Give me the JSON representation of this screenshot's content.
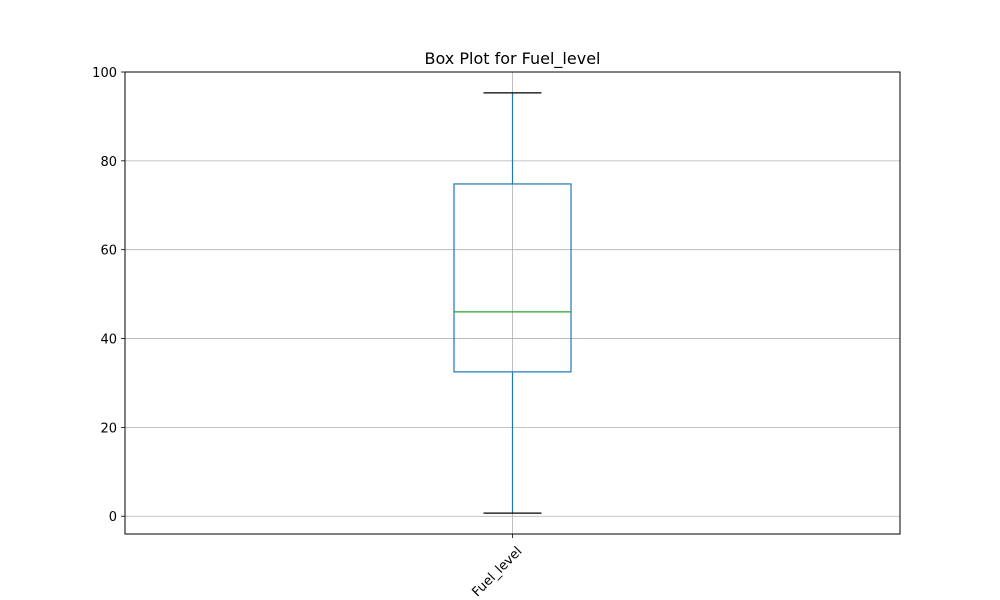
{
  "chart_data": {
    "type": "box",
    "title": "Box Plot for Fuel_level",
    "xlabel": "",
    "ylabel": "",
    "categories": [
      "Fuel_level"
    ],
    "boxes": [
      {
        "name": "Fuel_level",
        "whisker_low": 0.7,
        "q1": 32.5,
        "median": 46.0,
        "q3": 74.8,
        "whisker_high": 95.3
      }
    ],
    "ylim": [
      -4,
      100
    ],
    "yticks": [
      0,
      20,
      40,
      60,
      80,
      100
    ],
    "ytick_labels": [
      "0",
      "20",
      "40",
      "60",
      "80",
      "100"
    ],
    "grid": true,
    "xtick_rotation": 45,
    "colors": {
      "box": "#1f77b4",
      "median": "#2ca02c",
      "whisker_cap": "#000000",
      "grid": "#b0b0b0",
      "axes": "#000000"
    }
  }
}
